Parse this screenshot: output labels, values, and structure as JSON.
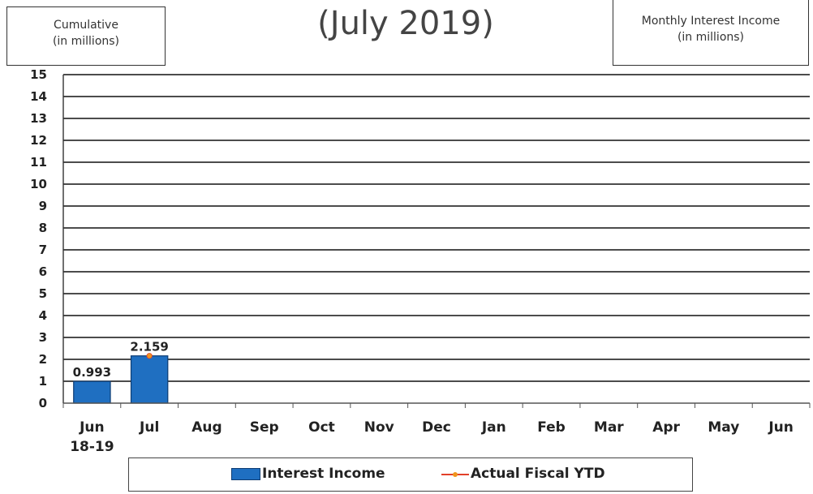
{
  "header": {
    "left_box_line1": "Cumulative",
    "left_box_line2": "(in millions)",
    "title": "(July 2019)",
    "right_box_line1": "Monthly Interest Income",
    "right_box_line2": "(in millions)"
  },
  "chart_data": {
    "type": "bar",
    "title": "(July 2019)",
    "categories": [
      "Jun\n18-19",
      "Jul",
      "Aug",
      "Sep",
      "Oct",
      "Nov",
      "Dec",
      "Jan",
      "Feb",
      "Mar",
      "Apr",
      "May",
      "Jun"
    ],
    "series": [
      {
        "name": "Interest Income",
        "type": "bar",
        "color": "#1f6fc1",
        "values": [
          0.993,
          2.159,
          null,
          null,
          null,
          null,
          null,
          null,
          null,
          null,
          null,
          null,
          null
        ],
        "data_labels": [
          "0.993",
          "2.159",
          "",
          "",
          "",
          "",
          "",
          "",
          "",
          "",
          "",
          "",
          ""
        ]
      },
      {
        "name": "Actual Fiscal YTD",
        "type": "line",
        "color": "#e2402a",
        "marker_color": "#f0951e",
        "values": [
          null,
          2.159,
          null,
          null,
          null,
          null,
          null,
          null,
          null,
          null,
          null,
          null,
          null
        ]
      }
    ],
    "ylim": [
      0,
      15
    ],
    "yticks": [
      0,
      1,
      2,
      3,
      4,
      5,
      6,
      7,
      8,
      9,
      10,
      11,
      12,
      13,
      14,
      15
    ],
    "grid": true,
    "legend_position": "bottom"
  }
}
